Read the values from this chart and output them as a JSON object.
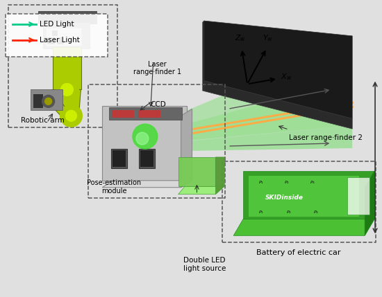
{
  "bg_color": "#e0e0e0",
  "legend": {
    "led_color": "#00cc88",
    "laser_color": "#ff2200",
    "led_label": "LED Light",
    "laser_label": "Laser Light"
  },
  "labels": {
    "double_led": "Double LED\nlight source",
    "battery": "Battery of electric car",
    "pose_module": "Pose-estimation\nmodule",
    "ccd": "CCD",
    "robotic_arm": "Robotic arm",
    "laser1": "Laser\nrange·finder 1",
    "laser2": "Laser range·finder 2",
    "xw": "$X_w$",
    "zw": "$Z_w$",
    "yw": "$Y_w$"
  },
  "colors": {
    "green_light": "#44dd33",
    "orange_laser": "#ffaa44",
    "robot_green": "#aacc00",
    "box_gray": "#aaaaaa",
    "battery_green": "#33aa44",
    "dark_box": "#111111",
    "arrow_gray": "#555555",
    "laser_red": "#ff2200"
  }
}
